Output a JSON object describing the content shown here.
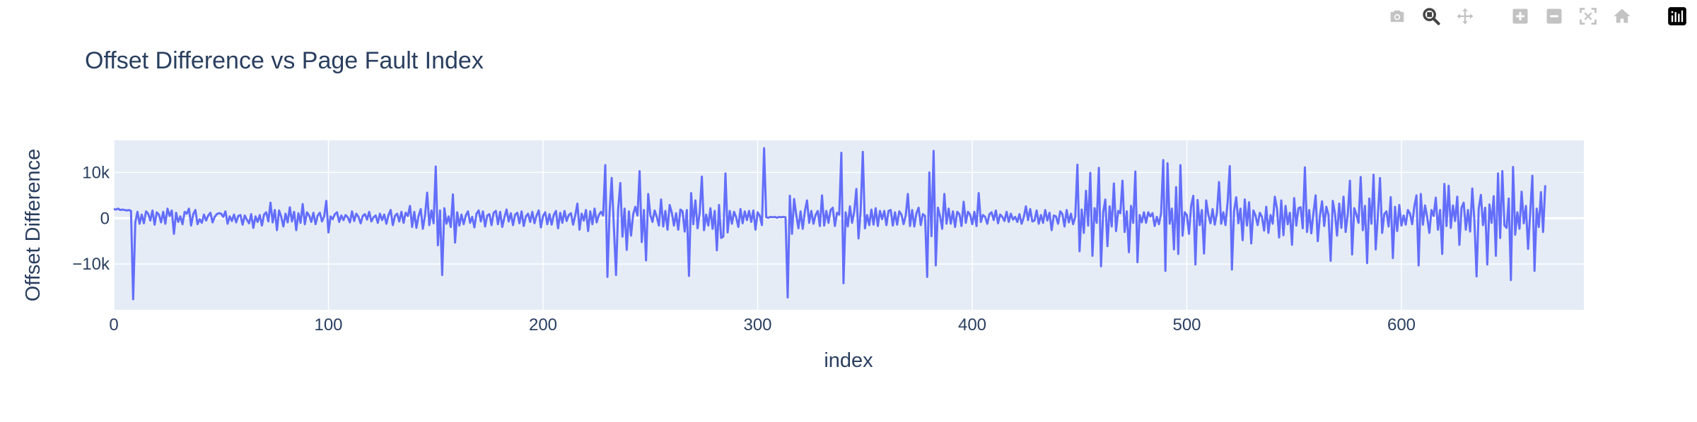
{
  "modebar": {
    "buttons": [
      "camera-icon",
      "zoom-icon",
      "pan-icon",
      "zoom-in-icon",
      "zoom-out-icon",
      "autoscale-icon",
      "reset-axes-icon",
      "plotly-logo-icon"
    ],
    "active": "zoom-icon"
  },
  "colors": {
    "line": "#636efa",
    "plot_bg": "#e5ecf6",
    "grid": "#ffffff",
    "text": "#2a3f5f"
  },
  "chart_data": {
    "type": "line",
    "title": "Offset Difference vs Page Fault Index",
    "xlabel": "index",
    "ylabel": "Offset Difference",
    "xlim": [
      0,
      685
    ],
    "ylim": [
      -20000,
      17000
    ],
    "x_ticks": [
      0,
      100,
      200,
      300,
      400,
      500,
      600
    ],
    "x_tick_labels": [
      "0",
      "100",
      "200",
      "300",
      "400",
      "500",
      "600"
    ],
    "y_ticks": [
      -10000,
      0,
      10000
    ],
    "y_tick_labels": [
      "−10k",
      "0",
      "10k"
    ],
    "grid": true,
    "legend": "none",
    "x_start": 0,
    "values": [
      2000,
      1900,
      2100,
      1800,
      1900,
      1800,
      1700,
      1800,
      1600,
      -17700,
      -900,
      1400,
      -1200,
      800,
      -1100,
      1500,
      1000,
      -500,
      1700,
      -1400,
      1300,
      800,
      -900,
      1400,
      -1200,
      2100,
      500,
      1700,
      -3400,
      1200,
      -800,
      400,
      -1300,
      1400,
      1000,
      2100,
      -1600,
      900,
      1800,
      -1300,
      -200,
      -1000,
      800,
      -500,
      600,
      1200,
      -900,
      300,
      900,
      1100,
      1000,
      300,
      1500,
      -1200,
      400,
      -600,
      800,
      -900,
      500,
      700,
      -1400,
      600,
      -300,
      -1100,
      900,
      -2100,
      400,
      -800,
      700,
      -1600,
      800,
      1300,
      -700,
      3400,
      -900,
      1800,
      -2600,
      1700,
      300,
      -1800,
      1000,
      -900,
      2400,
      -700,
      1400,
      -2600,
      1100,
      -1000,
      3100,
      -1300,
      1300,
      600,
      -800,
      1200,
      -1300,
      600,
      1200,
      -700,
      400,
      3800,
      -3100,
      400,
      -200,
      900,
      1300,
      -800,
      600,
      -400,
      700,
      200,
      -900,
      1500,
      -600,
      1000,
      300,
      -1100,
      500,
      900,
      -300,
      1400,
      -700,
      200,
      600,
      -1000,
      1000,
      -400,
      800,
      -1200,
      700,
      1800,
      -1500,
      500,
      1000,
      -700,
      1400,
      -1000,
      1200,
      500,
      2700,
      -1900,
      1400,
      -2100,
      500,
      2000,
      -2300,
      600,
      5600,
      -1500,
      1700,
      -1100,
      11300,
      -5900,
      1700,
      -12400,
      2200,
      -1200,
      400,
      -1900,
      5200,
      -5300,
      1300,
      -1600,
      800,
      -1300,
      600,
      1500,
      -1000,
      300,
      -2000,
      1000,
      1700,
      -700,
      1500,
      -1800,
      600,
      900,
      -1500,
      1200,
      1600,
      -1300,
      1400,
      -1900,
      200,
      1900,
      -700,
      1100,
      -1500,
      800,
      1200,
      -1100,
      1500,
      -1700,
      400,
      1000,
      -800,
      1400,
      -1100,
      600,
      1700,
      -2000,
      500,
      1300,
      -1300,
      900,
      -1400,
      700,
      1600,
      -2200,
      1200,
      -1000,
      1600,
      -600,
      700,
      1100,
      -1400,
      600,
      3200,
      -2500,
      1000,
      -500,
      1800,
      -2800,
      1500,
      -1300,
      2100,
      -900,
      700,
      1400,
      600,
      11600,
      -12800,
      1300,
      8800,
      -1900,
      -12400,
      1900,
      7700,
      -4000,
      2100,
      -6900,
      1500,
      -3800,
      900,
      2500,
      600,
      10300,
      -5200,
      1800,
      -9200,
      5300,
      700,
      -800,
      1700,
      300,
      -1600,
      4100,
      -1800,
      1600,
      -2500,
      2900,
      1200,
      -1600,
      1100,
      -2500,
      1900,
      1500,
      -2900,
      1800,
      -12600,
      5500,
      -1300,
      3900,
      -2200,
      1200,
      9100,
      -2600,
      800,
      -1600,
      2200,
      -2300,
      1600,
      -7000,
      2900,
      -4300,
      -4000,
      9800,
      -3100,
      1600,
      -1200,
      1400,
      200,
      -1900,
      2000,
      -1100,
      1500,
      -400,
      1600,
      -800,
      1700,
      -2500,
      1300,
      500,
      -1500,
      15300,
      200,
      100,
      300,
      200,
      300,
      100,
      300,
      200,
      300,
      200,
      -17300,
      4900,
      -3400,
      4200,
      700,
      -2200,
      1500,
      -2300,
      1500,
      3900,
      -1000,
      1600,
      -1200,
      700,
      1600,
      -1700,
      5000,
      -1600,
      1600,
      -1000,
      1800,
      2300,
      -1700,
      1200,
      800,
      14300,
      -14200,
      1300,
      -1800,
      2600,
      -1000,
      1400,
      6400,
      -4400,
      1600,
      14500,
      -2200,
      700,
      -1500,
      1900,
      -1400,
      2200,
      -1700,
      1600,
      -200,
      1600,
      -1500,
      1600,
      1800,
      -1600,
      1300,
      -1400,
      1500,
      800,
      -1300,
      600,
      5300,
      -1700,
      1800,
      -1800,
      1100,
      2300,
      -1500,
      900,
      500,
      -12800,
      10000,
      -3900,
      14700,
      -10300,
      2300,
      400,
      -2300,
      5300,
      -1200,
      2100,
      -1200,
      1500,
      -1900,
      1400,
      900,
      -1700,
      3600,
      -1000,
      1400,
      800,
      -1300,
      1400,
      -1700,
      5500,
      -800,
      700,
      300,
      -1200,
      900,
      1300,
      -400,
      1700,
      -1100,
      800,
      300,
      -600,
      1400,
      -800,
      1000,
      -300,
      300,
      -800,
      900,
      -1200,
      200,
      2600,
      -400,
      2000,
      -700,
      -500,
      1700,
      -1200,
      700,
      -1000,
      1800,
      -500,
      1200,
      -2600,
      600,
      400,
      -1200,
      1500,
      900,
      -1800,
      1800,
      -900,
      1000,
      -1300,
      300,
      11700,
      -7200,
      1900,
      -3200,
      6000,
      -1600,
      9900,
      -8200,
      2200,
      -1000,
      11000,
      -10500,
      1300,
      4100,
      -6100,
      2600,
      -1800,
      7600,
      -2800,
      1600,
      1100,
      8200,
      -3000,
      1500,
      -7400,
      2700,
      -1000,
      10200,
      -9600,
      700,
      -900,
      1300,
      -1000,
      1300,
      400,
      1100,
      -1700,
      300,
      -1300,
      1100,
      12700,
      -11500,
      12000,
      -1200,
      2100,
      -6800,
      6800,
      -7800,
      11600,
      -3800,
      1300,
      700,
      -3400,
      2700,
      4900,
      -10100,
      4000,
      -1500,
      1800,
      -7700,
      3900,
      800,
      -1100,
      2000,
      -1400,
      1100,
      7900,
      -1200,
      1300,
      -1500,
      3500,
      11400,
      -11200,
      1600,
      4600,
      -1100,
      2100,
      -4800,
      4100,
      -1600,
      3500,
      -5500,
      1700,
      600,
      -1500,
      1200,
      300,
      -2700,
      2500,
      -3200,
      700,
      -1200,
      4700,
      2100,
      -4200,
      3900,
      -3700,
      2700,
      -1300,
      1200,
      -5800,
      4400,
      -1600,
      2200,
      2400,
      -2200,
      11100,
      -3000,
      1800,
      -3300,
      1200,
      5000,
      -5000,
      500,
      3700,
      -1700,
      2500,
      700,
      -9300,
      3800,
      1100,
      -3800,
      3200,
      -2100,
      4700,
      -3000,
      1000,
      8200,
      -7900,
      2200,
      800,
      -1000,
      9000,
      -2600,
      2700,
      -9800,
      4300,
      -1200,
      9500,
      -6800,
      500,
      8800,
      -3200,
      900,
      1500,
      -1800,
      4600,
      -8700,
      2500,
      -2800,
      2900,
      -1600,
      600,
      -1400,
      1800,
      1000,
      -1300,
      2600,
      5000,
      -10300,
      5300,
      -1400,
      2800,
      200,
      -3200,
      1800,
      500,
      4500,
      -2500,
      1800,
      -7800,
      7500,
      -1700,
      7100,
      -2100,
      2800,
      -600,
      4700,
      -5800,
      2300,
      3400,
      -2500,
      1800,
      -2900,
      6500,
      -600,
      -12700,
      2100,
      5100,
      -1500,
      2300,
      -10100,
      3000,
      -1000,
      4800,
      -8200,
      9800,
      -4300,
      10300,
      -1600,
      -2100,
      4300,
      -13500,
      11200,
      -3600,
      1300,
      -2300,
      5800,
      -1100,
      2700,
      -6700,
      1200,
      9300,
      -11500,
      2100,
      -1900,
      5700,
      -3000,
      7200
    ]
  }
}
